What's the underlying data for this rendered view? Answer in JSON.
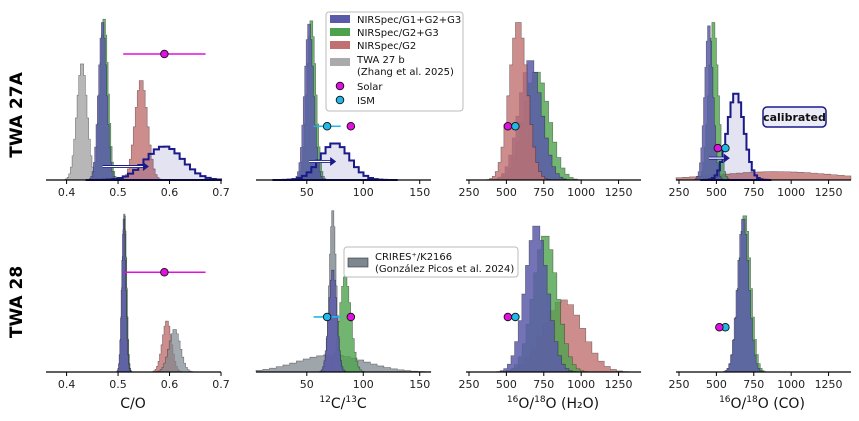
{
  "figure": {
    "row_labels": [
      "TWA 27A",
      "TWA 28"
    ],
    "xlabels": {
      "co": "C/O",
      "c13": {
        "pre": "12",
        "mid": "C/",
        "sup2": "13",
        "post": "C"
      },
      "o18h2o": {
        "sup1": "16",
        "mid": "O/",
        "sup2": "18",
        "post": "O (H₂O)"
      },
      "o18co": {
        "sup1": "16",
        "mid": "O/",
        "sup2": "18",
        "post": "O (CO)"
      }
    },
    "calibrated_label": "calibrated",
    "legend_top": [
      {
        "label": "NIRSpec/G1+G2+G3",
        "kind": "patch",
        "color": "#5a5aa8"
      },
      {
        "label": "NIRSpec/G2+G3",
        "kind": "patch",
        "color": "#4ea24e"
      },
      {
        "label": "NIRSpec/G2",
        "kind": "patch",
        "color": "#c07070"
      },
      {
        "label": "TWA 27 b",
        "label2": "(Zhang et al. 2025)",
        "kind": "patch",
        "color": "#aaaaaa"
      },
      {
        "label": "Solar",
        "kind": "marker",
        "color": "#e010e0"
      },
      {
        "label": "ISM",
        "kind": "marker",
        "color": "#20b8e8"
      }
    ],
    "legend_bottom": {
      "label": "CRIRES⁺/K2166",
      "label2": "(González Picos et al. 2024)",
      "color": "#7d878f"
    }
  },
  "chart_data": [
    {
      "type": "histogram",
      "panel": "TWA 27A – C/O",
      "xlim": [
        0.36,
        0.7
      ],
      "xticks": [
        0.4,
        0.5,
        0.6,
        0.7
      ],
      "xtick_labels": [
        "0.4",
        "0.5",
        "0.6",
        "0.7"
      ],
      "series": [
        {
          "name": "TWA 27 b (Zhang et al. 2025)",
          "mean": 0.43,
          "sd": 0.01,
          "peak": 0.7,
          "color": "#aaaaaa",
          "alpha": 0.85
        },
        {
          "name": "NIRSpec/G2+G3",
          "mean": 0.473,
          "sd": 0.008,
          "peak": 0.97,
          "color": "#4ea24e",
          "alpha": 0.8
        },
        {
          "name": "NIRSpec/G1+G2+G3",
          "mean": 0.47,
          "sd": 0.008,
          "peak": 0.95,
          "color": "#5a5aa8",
          "alpha": 0.85
        },
        {
          "name": "NIRSpec/G2",
          "mean": 0.545,
          "sd": 0.012,
          "peak": 0.6,
          "color": "#c07070",
          "alpha": 0.8
        },
        {
          "name": "G1+G2+G3 calibrated",
          "mean": 0.59,
          "sd": 0.036,
          "peak": 0.2,
          "color": "#1a1a8a",
          "alpha": 0.15,
          "outline": true
        }
      ],
      "solar": {
        "value": 0.59,
        "err": [
          0.51,
          0.67
        ],
        "y": 0.75
      },
      "arrow": {
        "from": 0.47,
        "to": 0.56,
        "y": 0.08
      }
    },
    {
      "type": "histogram",
      "panel": "TWA 27A – 12C/13C",
      "xlim": [
        5,
        160
      ],
      "xticks": [
        50,
        100,
        150
      ],
      "xtick_labels": [
        "50",
        "100",
        "150"
      ],
      "series": [
        {
          "name": "NIRSpec/G2+G3",
          "mean": 54,
          "sd": 4,
          "peak": 0.96,
          "color": "#4ea24e",
          "alpha": 0.8
        },
        {
          "name": "NIRSpec/G1+G2+G3",
          "mean": 52,
          "sd": 4,
          "peak": 0.94,
          "color": "#5a5aa8",
          "alpha": 0.85
        },
        {
          "name": "G1+G2+G3 calibrated",
          "mean": 75,
          "sd": 13,
          "peak": 0.22,
          "color": "#1a1a8a",
          "alpha": 0.15,
          "outline": true
        }
      ],
      "solar": {
        "value": 89,
        "y": 0.32
      },
      "ism": {
        "value": 68,
        "err": [
          56,
          80
        ],
        "y": 0.32
      },
      "arrow": {
        "from": 52,
        "to": 76,
        "y": 0.11
      }
    },
    {
      "type": "histogram",
      "panel": "TWA 27A – 16O/18O (H2O)",
      "xlim": [
        230,
        1400
      ],
      "xticks": [
        250,
        500,
        750,
        1000,
        1250
      ],
      "xtick_labels": [
        "250",
        "500",
        "750",
        "1000",
        "1250"
      ],
      "series": [
        {
          "name": "NIRSpec/G2+G3",
          "mean": 700,
          "sd": 85,
          "peak": 0.65,
          "color": "#4ea24e",
          "alpha": 0.8
        },
        {
          "name": "NIRSpec/G1+G2+G3",
          "mean": 660,
          "sd": 75,
          "peak": 0.72,
          "color": "#5a5aa8",
          "alpha": 0.85
        },
        {
          "name": "NIRSpec/G2",
          "mean": 580,
          "sd": 60,
          "peak": 0.95,
          "color": "#c07070",
          "alpha": 0.8
        }
      ],
      "solar": {
        "value": 510,
        "y": 0.32
      },
      "ism": {
        "value": 560,
        "y": 0.32
      }
    },
    {
      "type": "histogram",
      "panel": "TWA 27A – 16O/18O (CO)",
      "xlim": [
        230,
        1400
      ],
      "xticks": [
        250,
        500,
        750,
        1000,
        1250
      ],
      "xtick_labels": [
        "250",
        "500",
        "750",
        "1000",
        "1250"
      ],
      "series": [
        {
          "name": "NIRSpec/G2",
          "mean": 900,
          "sd": 400,
          "peak": 0.05,
          "color": "#c07070",
          "alpha": 0.8
        },
        {
          "name": "NIRSpec/G2+G3",
          "mean": 480,
          "sd": 32,
          "peak": 0.95,
          "color": "#4ea24e",
          "alpha": 0.8
        },
        {
          "name": "NIRSpec/G1+G2+G3",
          "mean": 450,
          "sd": 28,
          "peak": 0.93,
          "color": "#5a5aa8",
          "alpha": 0.85
        },
        {
          "name": "G1+G2+G3 calibrated",
          "mean": 630,
          "sd": 55,
          "peak": 0.52,
          "color": "#1a1a8a",
          "alpha": 0.15,
          "outline": true
        }
      ],
      "solar": {
        "value": 510,
        "y": 0.19
      },
      "ism": {
        "value": 560,
        "y": 0.19
      },
      "arrow": {
        "from": 450,
        "to": 590,
        "y": 0.13
      }
    },
    {
      "type": "histogram",
      "panel": "TWA 28 – C/O",
      "xlim": [
        0.36,
        0.7
      ],
      "xticks": [
        0.4,
        0.5,
        0.6,
        0.7
      ],
      "xtick_labels": [
        "0.4",
        "0.5",
        "0.6",
        "0.7"
      ],
      "series": [
        {
          "name": "NIRSpec/G2+G3",
          "mean": 0.513,
          "sd": 0.004,
          "peak": 0.92,
          "color": "#4ea24e",
          "alpha": 0.8
        },
        {
          "name": "CRIRES+/K2166",
          "mean": 0.512,
          "sd": 0.004,
          "peak": 0.93,
          "color": "#7d878f",
          "alpha": 0.75
        },
        {
          "name": "NIRSpec/G1+G2+G3",
          "mean": 0.511,
          "sd": 0.004,
          "peak": 0.9,
          "color": "#5a5aa8",
          "alpha": 0.85
        },
        {
          "name": "NIRSpec/G2",
          "mean": 0.595,
          "sd": 0.009,
          "peak": 0.3,
          "color": "#c07070",
          "alpha": 0.8
        },
        {
          "name": "CRIRES+/K2166 (second)",
          "mean": 0.61,
          "sd": 0.011,
          "peak": 0.25,
          "color": "#7d878f",
          "alpha": 0.7
        }
      ],
      "solar": {
        "value": 0.59,
        "err": [
          0.51,
          0.67
        ],
        "y": 0.58
      }
    },
    {
      "type": "histogram",
      "panel": "TWA 28 – 12C/13C",
      "xlim": [
        5,
        160
      ],
      "xticks": [
        50,
        100,
        150
      ],
      "xtick_labels": [
        "50",
        "100",
        "150"
      ],
      "series": [
        {
          "name": "CRIRES+/K2166 (broad)",
          "mean": 72,
          "sd": 30,
          "peak": 0.1,
          "color": "#7d878f",
          "alpha": 0.75
        },
        {
          "name": "NIRSpec/G2+G3",
          "mean": 84,
          "sd": 5,
          "peak": 0.56,
          "color": "#4ea24e",
          "alpha": 0.8
        },
        {
          "name": "CRIRES+/K2166",
          "mean": 73,
          "sd": 3,
          "peak": 0.95,
          "color": "#7d878f",
          "alpha": 0.8
        },
        {
          "name": "NIRSpec/G1+G2+G3",
          "mean": 73,
          "sd": 3.5,
          "peak": 0.6,
          "color": "#5a5aa8",
          "alpha": 0.85
        }
      ],
      "solar": {
        "value": 89,
        "y": 0.32
      },
      "ism": {
        "value": 68,
        "err": [
          56,
          80
        ],
        "y": 0.32
      }
    },
    {
      "type": "histogram",
      "panel": "TWA 28 – 16O/18O (H2O)",
      "xlim": [
        230,
        1400
      ],
      "xticks": [
        250,
        500,
        750,
        1000,
        1250
      ],
      "xtick_labels": [
        "250",
        "500",
        "750",
        "1000",
        "1250"
      ],
      "series": [
        {
          "name": "NIRSpec/G2",
          "mean": 880,
          "sd": 130,
          "peak": 0.42,
          "color": "#c07070",
          "alpha": 0.8
        },
        {
          "name": "NIRSpec/G2+G3",
          "mean": 760,
          "sd": 80,
          "peak": 0.8,
          "color": "#4ea24e",
          "alpha": 0.8
        },
        {
          "name": "NIRSpec/G1+G2+G3",
          "mean": 700,
          "sd": 75,
          "peak": 0.86,
          "color": "#5a5aa8",
          "alpha": 0.85
        }
      ],
      "solar": {
        "value": 510,
        "y": 0.32
      },
      "ism": {
        "value": 560,
        "y": 0.32
      }
    },
    {
      "type": "histogram",
      "panel": "TWA 28 – 16O/18O (CO)",
      "xlim": [
        230,
        1400
      ],
      "xticks": [
        250,
        500,
        750,
        1000,
        1250
      ],
      "xtick_labels": [
        "250",
        "500",
        "750",
        "1000",
        "1250"
      ],
      "series": [
        {
          "name": "NIRSpec/G2+G3",
          "mean": 690,
          "sd": 40,
          "peak": 0.92,
          "color": "#4ea24e",
          "alpha": 0.8
        },
        {
          "name": "NIRSpec/G1+G2+G3",
          "mean": 680,
          "sd": 38,
          "peak": 0.9,
          "color": "#5a5aa8",
          "alpha": 0.85
        }
      ],
      "solar": {
        "value": 520,
        "y": 0.26
      },
      "ism": {
        "value": 560,
        "y": 0.26
      }
    }
  ]
}
